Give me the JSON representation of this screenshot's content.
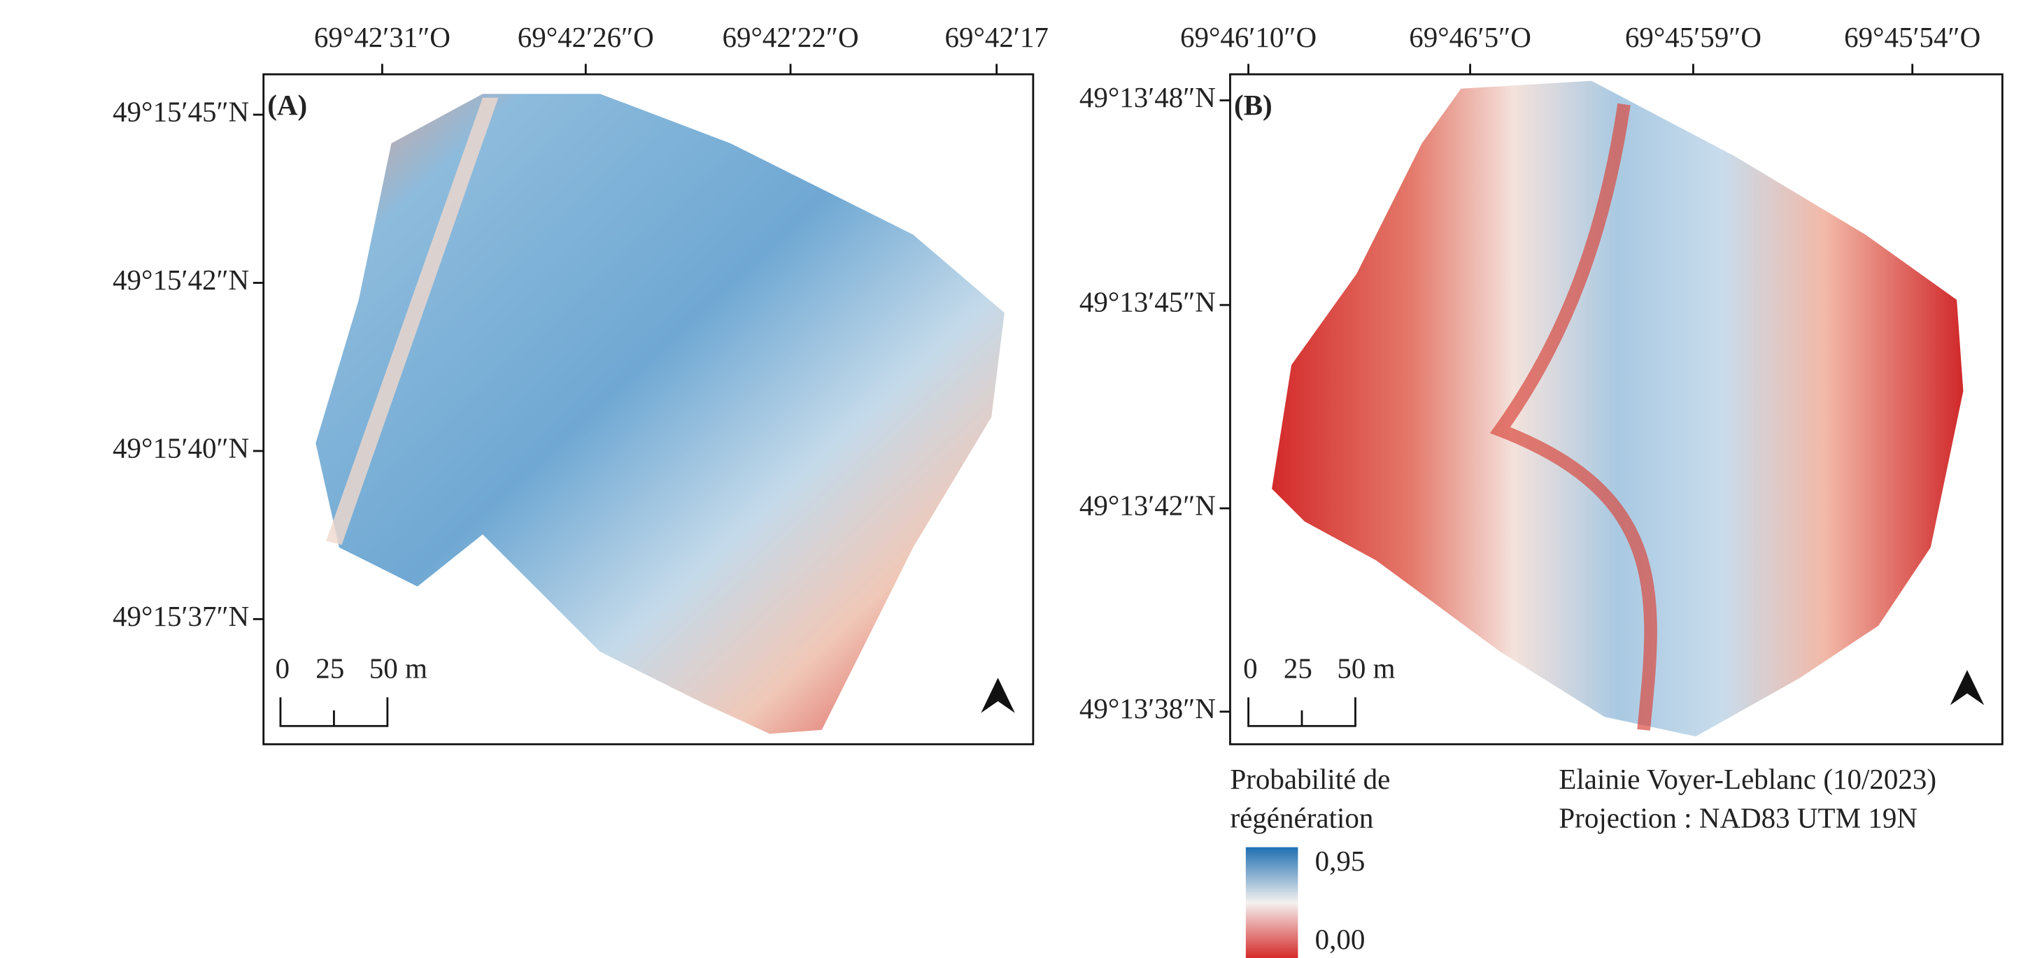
{
  "panels": [
    {
      "label": "(A)",
      "x_ticks": [
        "69°42′31″O",
        "69°42′26″O",
        "69°42′22″O",
        "69°42′17"
      ],
      "y_ticks": [
        "49°15′45″N",
        "49°15′42″N",
        "49°15′40″N",
        "49°15′37″N"
      ],
      "scale_bar": [
        "0",
        "25",
        "50 m"
      ]
    },
    {
      "label": "(B)",
      "x_ticks": [
        "69°46′10″O",
        "69°46′5″O",
        "69°45′59″O",
        "69°45′54″O"
      ],
      "y_ticks": [
        "49°13′48″N",
        "49°13′45″N",
        "49°13′42″N",
        "49°13′38″N"
      ],
      "scale_bar": [
        "0",
        "25",
        "50 m"
      ]
    }
  ],
  "legend": {
    "title": [
      "Probabilité de",
      "régénération"
    ],
    "labels": [
      "0,95",
      "0,00"
    ]
  },
  "credits": [
    "Elainie Voyer-Leblanc (10/2023)",
    "Projection : NAD83 UTM 19N"
  ]
}
